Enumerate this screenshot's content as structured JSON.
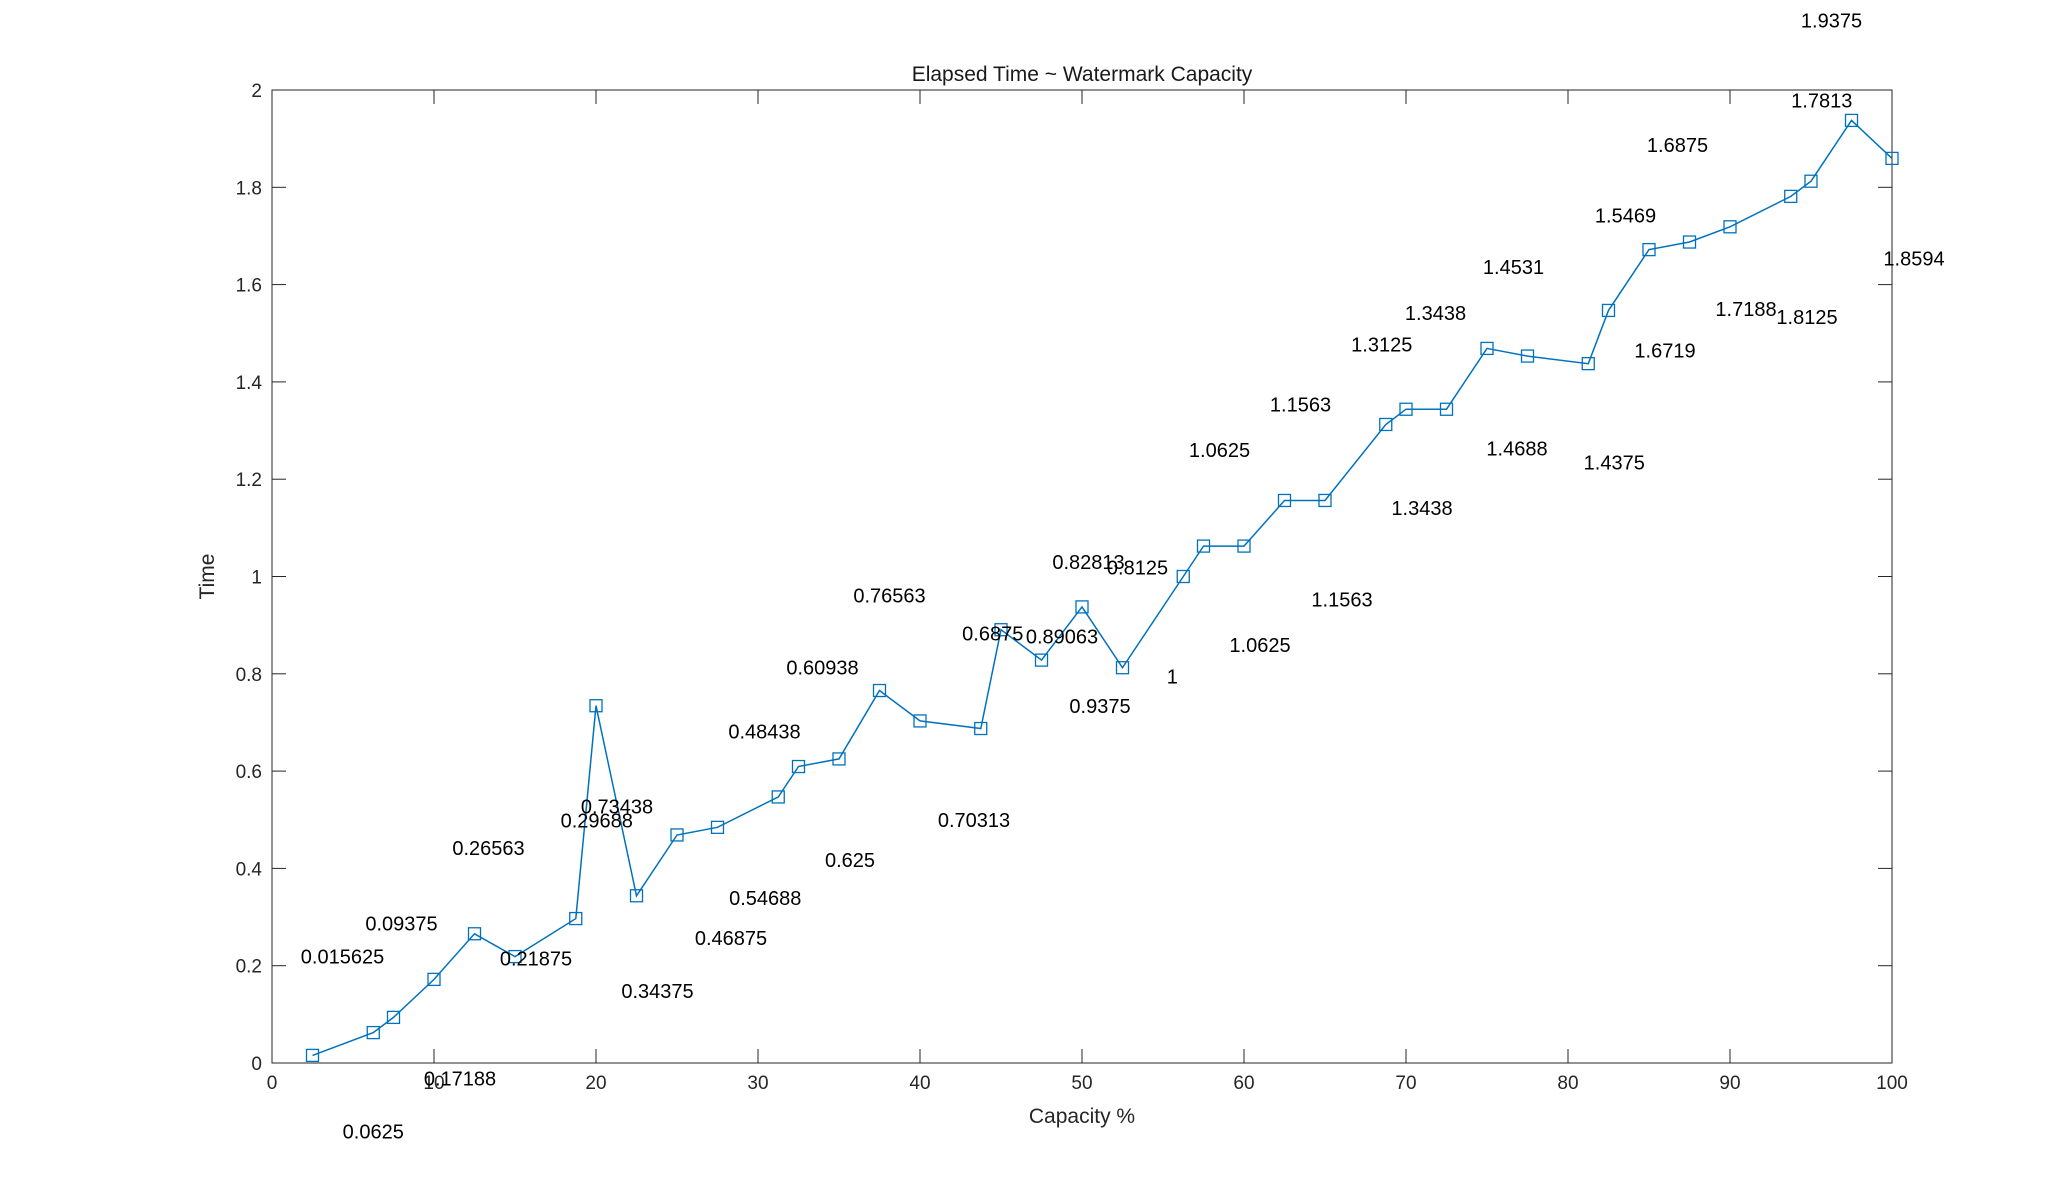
{
  "chart_data": {
    "type": "line",
    "title": "Elapsed Time ~ Watermark Capacity",
    "xlabel": "Capacity %",
    "ylabel": "Time",
    "xlim": [
      0,
      100
    ],
    "ylim": [
      0,
      2
    ],
    "xticks": [
      0,
      10,
      20,
      30,
      40,
      50,
      60,
      70,
      80,
      90,
      100
    ],
    "yticks": [
      0,
      0.2,
      0.4,
      0.6,
      0.8,
      1,
      1.2,
      1.4,
      1.6,
      1.8,
      2
    ],
    "xtick_labels": [
      "0",
      "10",
      "20",
      "30",
      "40",
      "50",
      "60",
      "70",
      "80",
      "90",
      "100"
    ],
    "ytick_labels": [
      "0",
      "0.2",
      "0.4",
      "0.6",
      "0.8",
      "1",
      "1.2",
      "1.4",
      "1.6",
      "1.8",
      "2"
    ],
    "grid": false,
    "series": [
      {
        "color": "#0072BD",
        "marker": "square",
        "x": [
          2.5,
          6.25,
          7.5,
          10,
          12.5,
          15,
          18.75,
          20,
          22.5,
          25,
          27.5,
          31.25,
          32.5,
          35,
          37.5,
          40,
          43.75,
          45,
          47.5,
          50,
          52.5,
          56.25,
          57.5,
          60,
          62.5,
          65,
          68.75,
          70,
          72.5,
          75,
          77.5,
          81.25,
          82.5,
          85,
          87.5,
          90,
          93.75,
          95,
          97.5,
          100
        ],
        "y": [
          0.015625,
          0.0625,
          0.09375,
          0.17188,
          0.26563,
          0.21875,
          0.29688,
          0.73438,
          0.34375,
          0.46875,
          0.48438,
          0.54688,
          0.60938,
          0.625,
          0.76563,
          0.70313,
          0.6875,
          0.89063,
          0.82813,
          0.9375,
          0.8125,
          1,
          1.0625,
          1.0625,
          1.1563,
          1.1563,
          1.3125,
          1.3438,
          1.3438,
          1.4688,
          1.4531,
          1.4375,
          1.5469,
          1.6719,
          1.6875,
          1.7188,
          1.7813,
          1.8125,
          1.9375,
          1.8594
        ],
        "labels": [
          "0.015625",
          "0.0625",
          "0.09375",
          "0.17188",
          "0.26563",
          "0.21875",
          "0.29688",
          "0.73438",
          "0.34375",
          "0.46875",
          "0.48438",
          "0.54688",
          "0.60938",
          "0.625",
          "0.76563",
          "0.70313",
          "0.6875",
          "0.89063",
          "0.82813",
          "0.9375",
          "0.8125",
          "1",
          "1.0625",
          "1.0625",
          "1.1563",
          "1.1563",
          "1.3125",
          "1.3438",
          "1.3438",
          "1.4688",
          "1.4531",
          "1.4375",
          "1.5469",
          "1.6719",
          "1.6875",
          "1.7188",
          "1.7813",
          "1.8125",
          "1.9375",
          "1.8594"
        ]
      }
    ]
  }
}
